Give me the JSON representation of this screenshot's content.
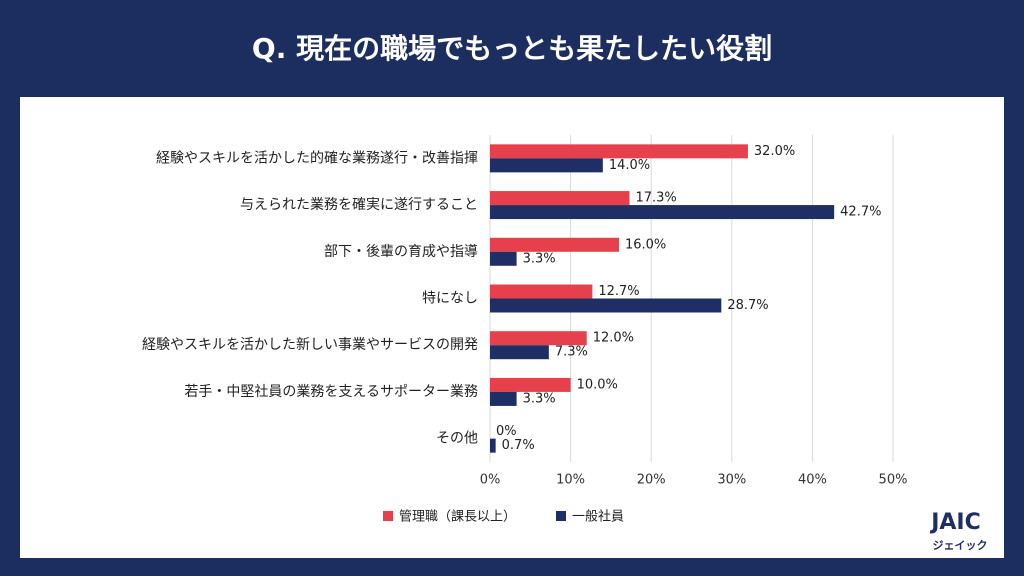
{
  "chart_data": {
    "type": "hbar",
    "title": "Q. 現在の職場でもっとも果たしたい役割",
    "categories": [
      "経験やスキルを活かした的確な業務遂行・改善指揮",
      "与えられた業務を確実に遂行すること",
      "部下・後輩の育成や指導",
      "特になし",
      "経験やスキルを活かした新しい事業やサービスの開発",
      "若手・中堅社員の業務を支えるサポーター業務",
      "その他"
    ],
    "series": [
      {
        "name": "管理職（課長以上）",
        "color": "#e5404b",
        "values": [
          32.0,
          17.3,
          16.0,
          12.7,
          12.0,
          10.0,
          0
        ],
        "value_labels": [
          "32.0%",
          "17.3%",
          "16.0%",
          "12.7%",
          "12.0%",
          "10.0%",
          "0%"
        ]
      },
      {
        "name": "一般社員",
        "color": "#1f2f66",
        "values": [
          14.0,
          42.7,
          3.3,
          28.7,
          7.3,
          3.3,
          0.7
        ],
        "value_labels": [
          "14.0%",
          "42.7%",
          "3.3%",
          "28.7%",
          "7.3%",
          "3.3%",
          "0.7%"
        ]
      }
    ],
    "xlim": [
      0,
      50
    ],
    "xticks": [
      {
        "value": 0,
        "label": "0%"
      },
      {
        "value": 10,
        "label": "10%"
      },
      {
        "value": 20,
        "label": "20%"
      },
      {
        "value": 30,
        "label": "30%"
      },
      {
        "value": 40,
        "label": "40%"
      },
      {
        "value": 50,
        "label": "50%"
      }
    ],
    "grid": true,
    "legend": "bottom"
  },
  "logo": {
    "text": "JAIC",
    "subtext": "ジェイック"
  }
}
